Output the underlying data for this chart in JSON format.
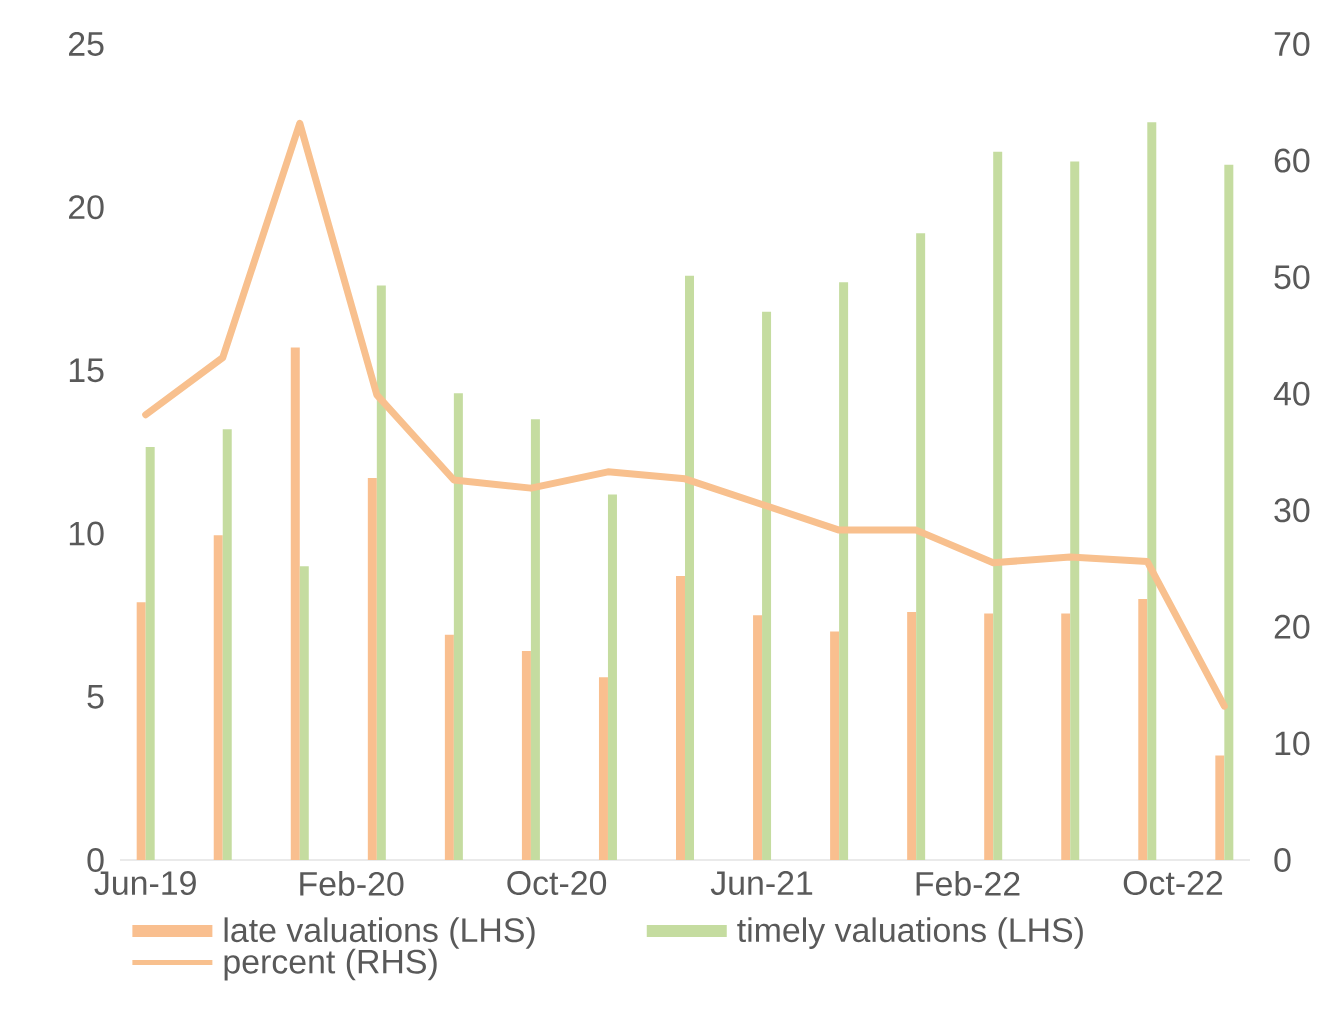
{
  "chart_data": {
    "type": "bar",
    "x": [
      "2019-06",
      "2019-09",
      "2019-12",
      "2020-03",
      "2020-06",
      "2020-09",
      "2020-12",
      "2021-03",
      "2021-06",
      "2021-09",
      "2021-12",
      "2022-03",
      "2022-06",
      "2022-09",
      "2022-12"
    ],
    "series": [
      {
        "name": "late valuations (LHS)",
        "color": "#f9bf8f",
        "values": [
          7.9,
          9.95,
          15.7,
          11.7,
          6.9,
          6.4,
          5.6,
          8.7,
          7.5,
          7.0,
          7.6,
          7.55,
          7.55,
          8.0,
          3.2
        ]
      },
      {
        "name": "timely valuations (LHS)",
        "color": "#c5dca0",
        "values": [
          12.65,
          13.2,
          9.0,
          17.6,
          14.3,
          13.5,
          11.2,
          17.9,
          16.8,
          17.7,
          19.2,
          21.7,
          21.4,
          22.6,
          21.3
        ]
      },
      {
        "name": "percent (RHS)",
        "type": "line",
        "axis": "y2",
        "color": "#f8c08e",
        "values": [
          38.2,
          43.1,
          63.2,
          39.9,
          32.6,
          31.9,
          33.3,
          32.7,
          30.5,
          28.3,
          28.3,
          25.5,
          26.0,
          25.6,
          13.2
        ]
      }
    ],
    "xlim": [
      "2019-05",
      "2023-01"
    ],
    "xticks": [
      {
        "value": "2019-06",
        "label": "Jun-19"
      },
      {
        "value": "2020-02",
        "label": "Feb-20"
      },
      {
        "value": "2020-10",
        "label": "Oct-20"
      },
      {
        "value": "2021-06",
        "label": "Jun-21"
      },
      {
        "value": "2022-02",
        "label": "Feb-22"
      },
      {
        "value": "2022-10",
        "label": "Oct-22"
      }
    ],
    "ylim": [
      0,
      25
    ],
    "yticks": [
      0,
      5,
      10,
      15,
      20,
      25
    ],
    "y2lim": [
      0,
      70
    ],
    "y2ticks": [
      0,
      10,
      20,
      30,
      40,
      50,
      60,
      70
    ],
    "grid": false,
    "legend": "bottom"
  }
}
